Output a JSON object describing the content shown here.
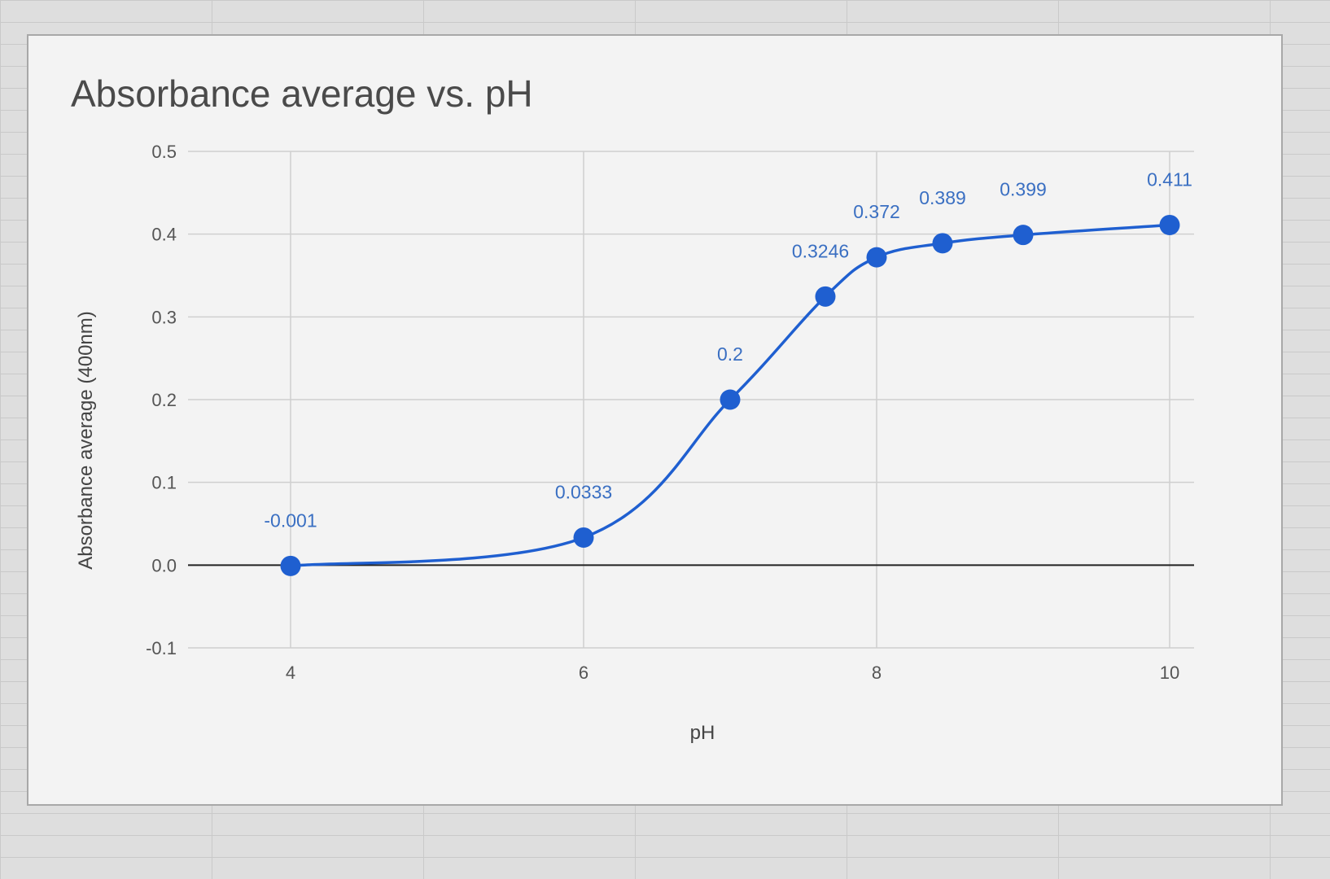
{
  "chart_data": {
    "type": "line",
    "title": "Absorbance average vs. pH",
    "xlabel": "pH",
    "ylabel": "Absorbance average (400nm)",
    "xlim": [
      3.3,
      10.1
    ],
    "ylim": [
      -0.1,
      0.5
    ],
    "x_ticks": [
      {
        "value": 4,
        "label": "4"
      },
      {
        "value": 6,
        "label": "6"
      },
      {
        "value": 8,
        "label": "8"
      },
      {
        "value": 10,
        "label": "10"
      }
    ],
    "y_ticks": [
      {
        "value": 0.5,
        "label": "0.5"
      },
      {
        "value": 0.4,
        "label": "0.4"
      },
      {
        "value": 0.3,
        "label": "0.3"
      },
      {
        "value": 0.2,
        "label": "0.2"
      },
      {
        "value": 0.1,
        "label": "0.1"
      },
      {
        "value": 0.0,
        "label": "0.0"
      },
      {
        "value": -0.1,
        "label": "-0.1"
      }
    ],
    "grid": true,
    "legend": "none",
    "smooth": true,
    "color": "#1f5fd0",
    "label_color": "#3a6fc2",
    "series": [
      {
        "points": [
          {
            "x": 4.0,
            "y": -0.001,
            "label": "-0.001"
          },
          {
            "x": 6.0,
            "y": 0.0333,
            "label": "0.0333"
          },
          {
            "x": 7.0,
            "y": 0.2,
            "label": "0.2"
          },
          {
            "x": 7.65,
            "y": 0.3246,
            "label": "0.3246"
          },
          {
            "x": 8.0,
            "y": 0.372,
            "label": "0.372"
          },
          {
            "x": 8.45,
            "y": 0.389,
            "label": "0.389"
          },
          {
            "x": 9.0,
            "y": 0.399,
            "label": "0.399"
          },
          {
            "x": 10.0,
            "y": 0.411,
            "label": "0.411"
          }
        ]
      }
    ]
  }
}
